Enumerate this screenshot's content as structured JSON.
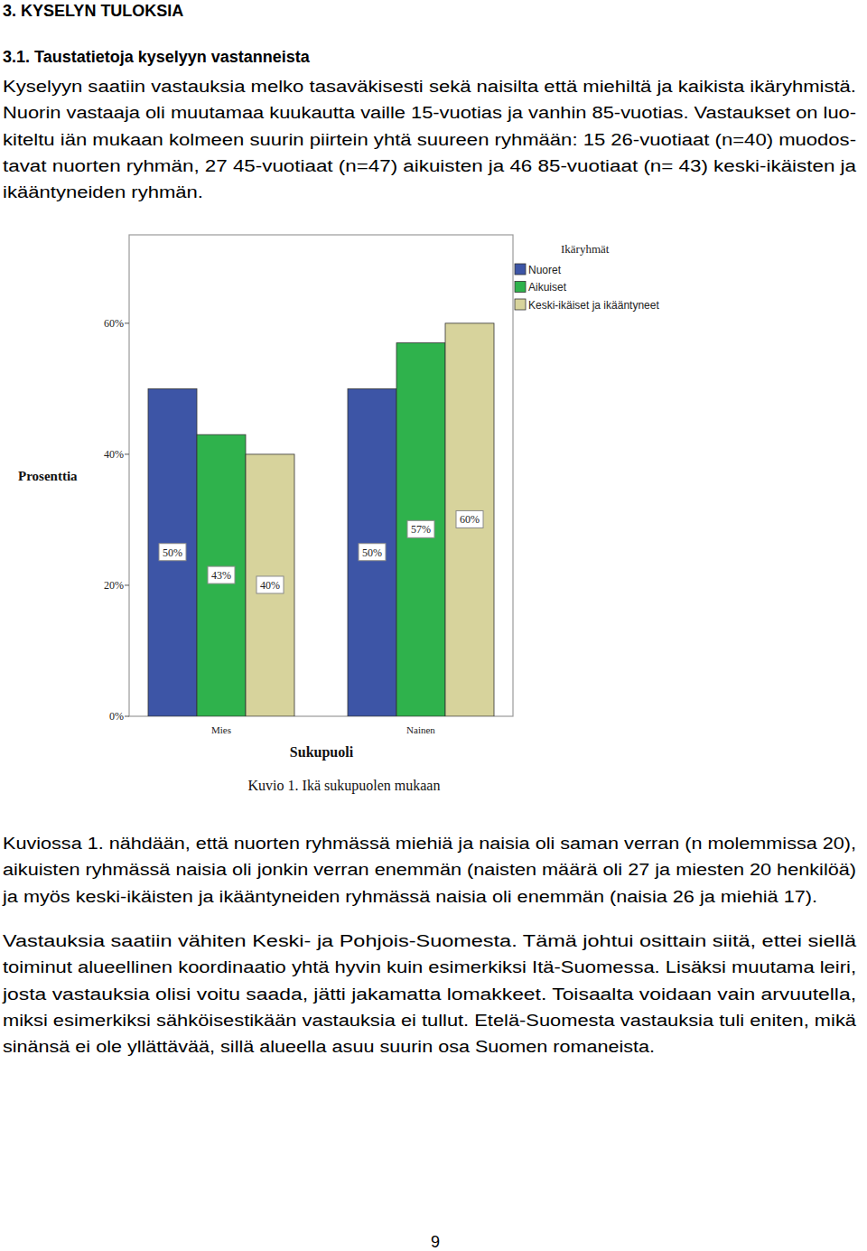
{
  "document": {
    "heading": "3. KYSELYN TULOKSIA",
    "subheading": "3.1. Taustatietoja kyselyyn vastanneista",
    "paragraphs": [
      [
        "Kyselyyn saatiin vastauksia melko tasaväkisesti sekä naisilta että miehiltä ja kaikista ikäryhmistä.",
        "Nuorin vastaaja oli muutamaa kuukautta vaille 15-vuotias ja vanhin 85-vuotias. Vastaukset on luo-",
        "kiteltu iän mukaan kolmeen suurin piirtein yhtä suureen ryhmään: 15 26-vuotiaat (n=40) muodos-",
        "tavat nuorten ryhmän, 27 45-vuotiaat (n=47) aikuisten ja 46 85-vuotiaat (n= 43) keski-ikäisten ja",
        "ikääntyneiden ryhmän."
      ],
      [
        "Kuviossa 1. nähdään, että nuorten ryhmässä miehiä ja naisia oli saman verran (n molemmissa 20),",
        "aikuisten ryhmässä naisia oli jonkin verran enemmän (naisten määrä oli 27 ja miesten 20 henkilöä)",
        "ja myös keski-ikäisten ja ikääntyneiden ryhmässä naisia oli enemmän (naisia 26 ja miehiä 17)."
      ],
      [
        "Vastauksia saatiin vähiten Keski- ja Pohjois-Suomesta. Tämä johtui osittain siitä, ettei siellä",
        "toiminut alueellinen koordinaatio yhtä hyvin kuin esimerkiksi Itä-Suomessa. Lisäksi muutama leiri,",
        "josta vastauksia olisi voitu saada, jätti jakamatta lomakkeet. Toisaalta voidaan vain arvuutella,",
        "miksi esimerkiksi sähköisestikään vastauksia ei tullut. Etelä-Suomesta vastauksia tuli eniten, mikä",
        "sinänsä ei ole yllättävää, sillä alueella asuu suurin osa Suomen romaneista."
      ]
    ],
    "page_number": "9"
  },
  "chart_data": {
    "type": "bar",
    "caption": "Kuvio 1. Ikä sukupuolen mukaan",
    "x_label": "Sukupuoli",
    "y_label": "Prosenttia",
    "legend_title": "Ikäryhmät",
    "categories": [
      "Mies",
      "Nainen"
    ],
    "series": [
      {
        "name": "Nuoret",
        "color": "#3d55a6",
        "values": [
          50,
          50
        ],
        "value_labels": [
          "50%",
          "50%"
        ]
      },
      {
        "name": "Aikuiset",
        "color": "#2fb24c",
        "values": [
          43,
          57
        ],
        "value_labels": [
          "43%",
          "57%"
        ]
      },
      {
        "name": "Keski-ikäiset ja ikääntyneet",
        "color": "#d7d39c",
        "values": [
          40,
          60
        ],
        "value_labels": [
          "40%",
          "60%"
        ]
      }
    ],
    "ylim": [
      0,
      73.5
    ],
    "yticks": [
      {
        "value": 0,
        "label": "0%"
      },
      {
        "value": 20,
        "label": "20%"
      },
      {
        "value": 40,
        "label": "40%"
      },
      {
        "value": 60,
        "label": "60%"
      }
    ],
    "data_labels": true,
    "legend": "top-right",
    "grid": false
  }
}
